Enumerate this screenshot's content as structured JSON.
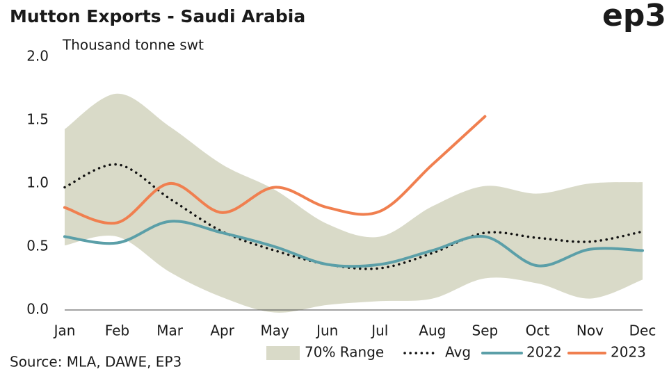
{
  "chart_data": {
    "type": "line",
    "title": "Mutton Exports - Saudi Arabia",
    "logo": "ep3",
    "y_label": "Thousand tonne swt",
    "source": "Source: MLA, DAWE, EP3",
    "categories": [
      "Jan",
      "Feb",
      "Mar",
      "Apr",
      "May",
      "Jun",
      "Jul",
      "Aug",
      "Sep",
      "Oct",
      "Nov",
      "Dec"
    ],
    "ylim": [
      0,
      2
    ],
    "yticks": [
      {
        "value": 0,
        "label": "0.0"
      },
      0.5,
      {
        "value": 1,
        "label": "1.0"
      },
      1.5,
      {
        "value": 2,
        "label": "2.0"
      }
    ],
    "range": {
      "name": "70% Range",
      "color": "#d9dac8",
      "upper": [
        1.43,
        1.71,
        1.45,
        1.15,
        0.95,
        0.68,
        0.58,
        0.82,
        0.98,
        0.92,
        1.0,
        1.01
      ],
      "lower": [
        0.51,
        0.58,
        0.3,
        0.1,
        -0.02,
        0.04,
        0.07,
        0.09,
        0.25,
        0.21,
        0.09,
        0.24
      ]
    },
    "series": [
      {
        "name": "Avg",
        "color": "#111111",
        "dashed": true,
        "values": [
          0.97,
          1.15,
          0.88,
          0.62,
          0.47,
          0.36,
          0.33,
          0.45,
          0.61,
          0.57,
          0.54,
          0.62
        ]
      },
      {
        "name": "2022",
        "color": "#5b9fa8",
        "values": [
          0.58,
          0.53,
          0.7,
          0.61,
          0.5,
          0.36,
          0.36,
          0.47,
          0.58,
          0.35,
          0.48,
          0.47
        ]
      },
      {
        "name": "2023",
        "color": "#f07f4f",
        "values": [
          0.81,
          0.69,
          1.0,
          0.77,
          0.97,
          0.81,
          0.78,
          1.15,
          1.53,
          null,
          null,
          null
        ]
      }
    ]
  }
}
